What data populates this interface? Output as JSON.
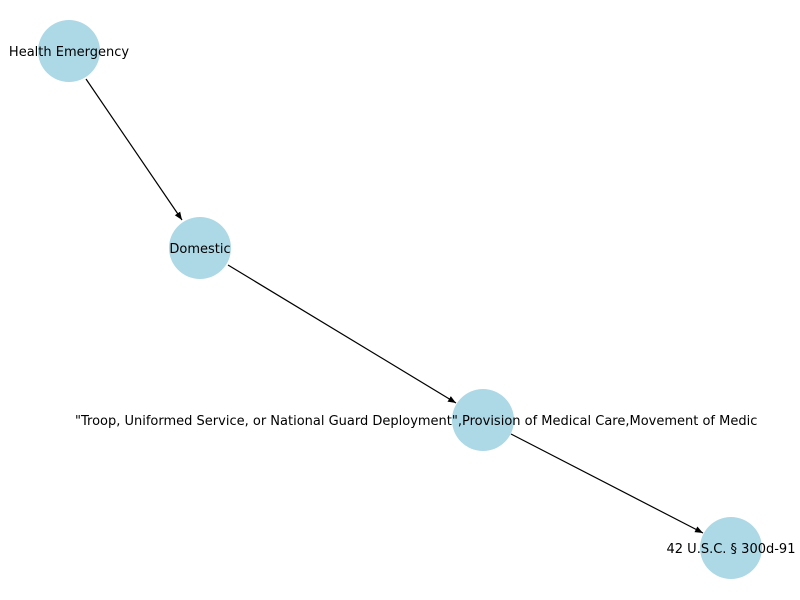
{
  "diagram": {
    "type": "directed-graph",
    "node_color": "#add8e6",
    "edge_color": "#000000",
    "nodes": [
      {
        "id": "health-emergency",
        "label": "Health Emergency"
      },
      {
        "id": "domestic",
        "label": "Domestic"
      },
      {
        "id": "deployment",
        "label": "\"Troop, Uniformed Service, or National Guard Deployment\",Provision of Medical Care,Movement of Medic"
      },
      {
        "id": "usc",
        "label": "42 U.S.C. § 300d-91"
      }
    ],
    "edges": [
      {
        "from": "health-emergency",
        "to": "domestic"
      },
      {
        "from": "domestic",
        "to": "deployment"
      },
      {
        "from": "deployment",
        "to": "usc"
      }
    ]
  }
}
